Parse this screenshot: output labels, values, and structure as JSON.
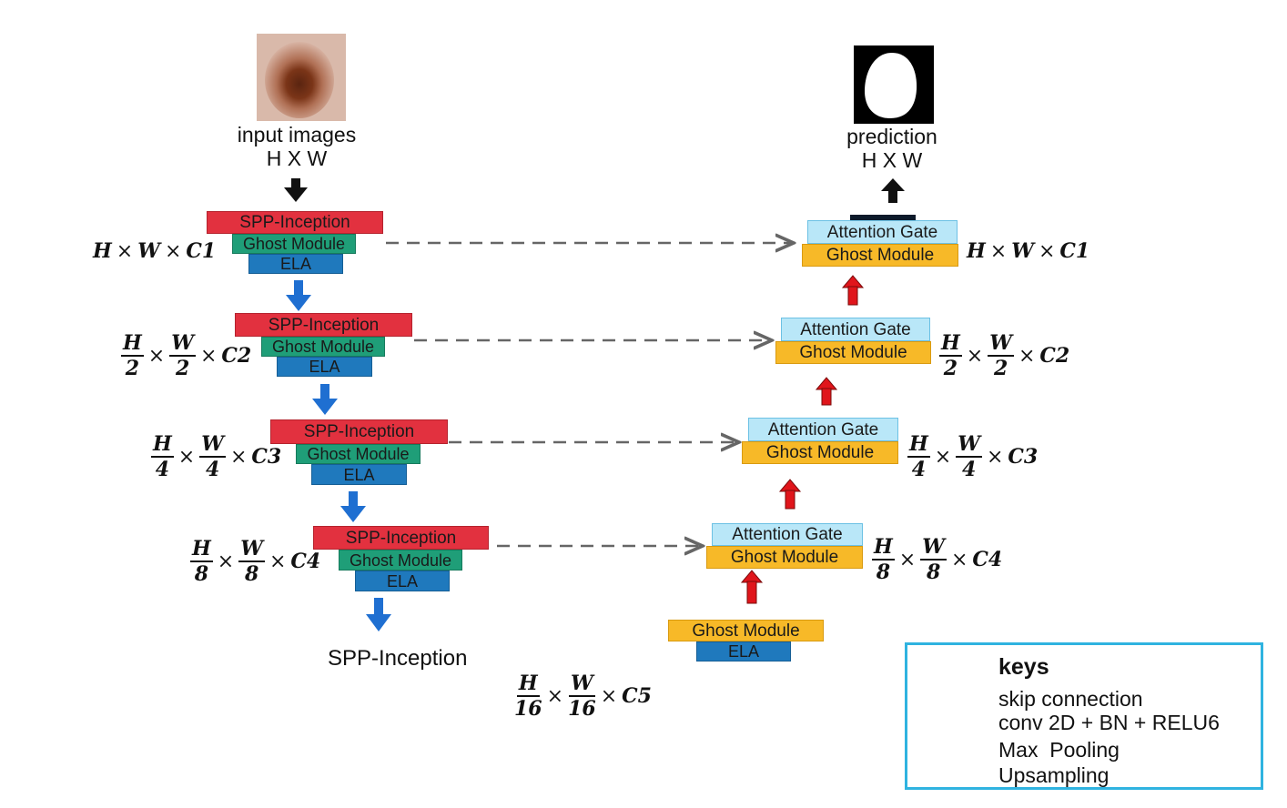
{
  "input": {
    "label": "input images",
    "size": "H X W"
  },
  "output": {
    "label": "prediction",
    "size": "H X W"
  },
  "encoder": {
    "spp": "SPP-Inception",
    "ghost": "Ghost Module",
    "ela": "ELA",
    "bottom_label": "SPP-Inception",
    "dims": [
      {
        "num1": "H",
        "den1": "",
        "num2": "W",
        "den2": "",
        "ch": "C1"
      },
      {
        "num1": "H",
        "den1": "2",
        "num2": "W",
        "den2": "2",
        "ch": "C2"
      },
      {
        "num1": "H",
        "den1": "4",
        "num2": "W",
        "den2": "4",
        "ch": "C3"
      },
      {
        "num1": "H",
        "den1": "8",
        "num2": "W",
        "den2": "8",
        "ch": "C4"
      }
    ],
    "bottleneck_dim": {
      "num1": "H",
      "den1": "16",
      "num2": "W",
      "den2": "16",
      "ch": "C5"
    }
  },
  "decoder": {
    "attention": "Attention Gate",
    "ghost": "Ghost Module",
    "bottom_ghost": "Ghost Module",
    "bottom_ela": "ELA"
  },
  "keys": {
    "title": "keys",
    "items": [
      {
        "label": "skip connection",
        "style": "dashed-arrow",
        "color": "#666666"
      },
      {
        "label": "conv 2D + BN + RELU6",
        "style": "bar",
        "color": "#0d1a2b"
      },
      {
        "label": "Max  Pooling",
        "style": "arrow",
        "color": "#1f6fd1"
      },
      {
        "label": "Upsampling",
        "style": "arrow",
        "color": "#e0151b"
      }
    ]
  },
  "colors": {
    "spp": "#e2313f",
    "ghost_encoder": "#1f9e78",
    "ela": "#1f79bd",
    "attention": "#b9e7f8",
    "ghost_decoder": "#f7b928",
    "maxpool_arrow": "#1f6fd1",
    "upsample_arrow": "#e0151b",
    "skip": "#666666"
  }
}
